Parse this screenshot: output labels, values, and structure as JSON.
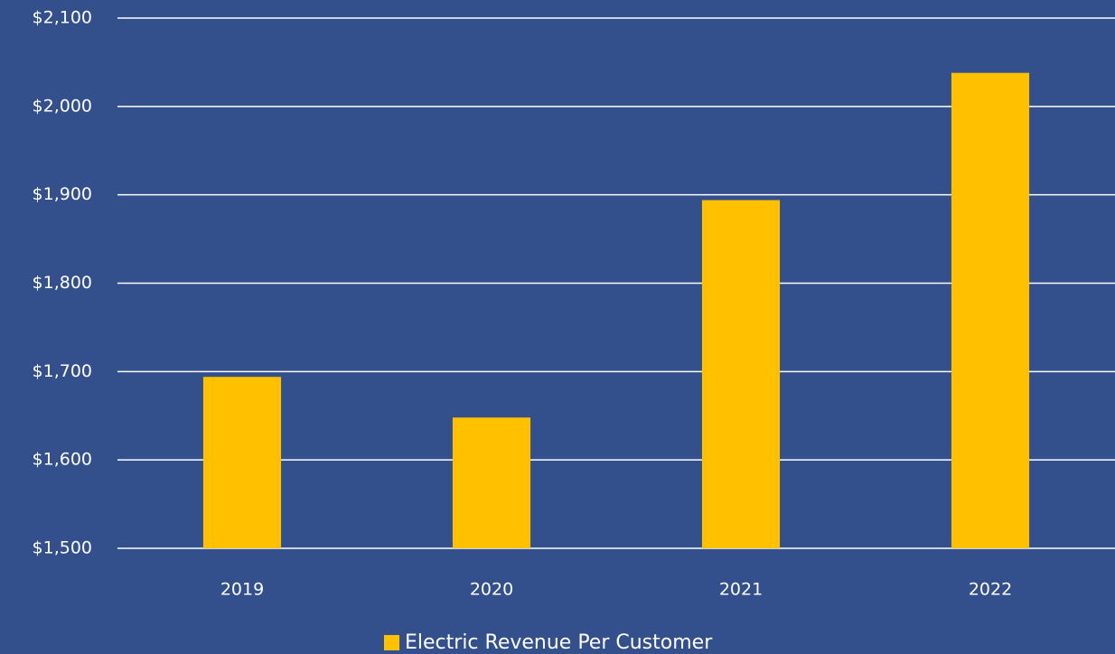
{
  "chart_data": {
    "type": "bar",
    "categories": [
      "2019",
      "2020",
      "2021",
      "2022"
    ],
    "series": [
      {
        "name": "Electric Revenue Per Customer",
        "color": "#ffc000",
        "values": [
          1694,
          1648,
          1894,
          2038
        ]
      }
    ],
    "ylim": [
      1500,
      2100
    ],
    "yticks": [
      {
        "value": 1500,
        "label": "$1,500"
      },
      {
        "value": 1600,
        "label": "$1,600"
      },
      {
        "value": 1700,
        "label": "$1,700"
      },
      {
        "value": 1800,
        "label": "$1,800"
      },
      {
        "value": 1900,
        "label": "$1,900"
      },
      {
        "value": 2000,
        "label": "$2,000"
      },
      {
        "value": 2100,
        "label": "$2,100"
      }
    ],
    "grid": true,
    "legend": "bottom",
    "background": "#334f8c"
  }
}
